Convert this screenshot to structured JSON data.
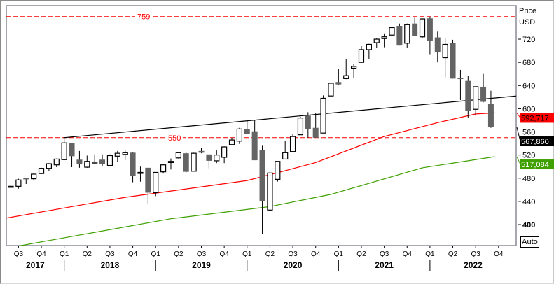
{
  "axis": {
    "title": "Price",
    "unit": "USD",
    "auto_label": "Auto"
  },
  "chart_data": {
    "type": "candlestick",
    "period": "monthly",
    "ylim": [
      385,
      775
    ],
    "yticks": [
      720,
      680,
      640,
      600,
      560,
      520,
      480,
      440,
      400
    ],
    "quarter_labels": [
      "Q3",
      "Q4",
      "Q1",
      "Q2",
      "Q3",
      "Q4",
      "Q1",
      "Q2",
      "Q3",
      "Q4",
      "Q1",
      "Q2",
      "Q3",
      "Q4",
      "Q1",
      "Q2",
      "Q3",
      "Q4",
      "Q1",
      "Q2",
      "Q3",
      "Q4"
    ],
    "year_labels": [
      "2017",
      "2018",
      "2019",
      "2020",
      "2021",
      "2022"
    ],
    "candles_ohlc": [
      [
        466,
        467,
        465,
        466
      ],
      [
        466,
        479,
        462,
        477
      ],
      [
        480,
        480,
        470,
        478
      ],
      [
        479,
        488,
        476,
        487
      ],
      [
        488,
        498,
        487,
        497
      ],
      [
        497,
        506,
        493,
        505
      ],
      [
        503,
        514,
        499,
        513
      ],
      [
        512,
        550,
        511,
        541
      ],
      [
        541,
        541,
        499,
        518
      ],
      [
        512,
        527,
        498,
        505
      ],
      [
        499,
        519,
        498,
        509
      ],
      [
        508,
        521,
        504,
        508
      ],
      [
        512,
        521,
        501,
        504
      ],
      [
        502,
        521,
        502,
        519
      ],
      [
        518,
        527,
        508,
        523
      ],
      [
        521,
        528,
        511,
        524
      ],
      [
        524,
        525,
        473,
        484
      ],
      [
        489,
        500,
        474,
        490
      ],
      [
        498,
        498,
        435,
        455
      ],
      [
        455,
        490,
        449,
        490
      ],
      [
        491,
        504,
        488,
        503
      ],
      [
        507,
        514,
        495,
        509
      ],
      [
        515,
        524,
        514,
        524
      ],
      [
        523,
        524,
        490,
        491
      ],
      [
        492,
        524,
        492,
        523
      ],
      [
        527,
        532,
        523,
        524
      ],
      [
        521,
        521,
        497,
        510
      ],
      [
        510,
        528,
        506,
        520
      ],
      [
        516,
        535,
        506,
        534
      ],
      [
        538,
        550,
        538,
        546
      ],
      [
        544,
        567,
        539,
        565
      ],
      [
        565,
        580,
        557,
        557
      ],
      [
        561,
        581,
        511,
        511
      ],
      [
        528,
        536,
        384,
        441
      ],
      [
        425,
        493,
        425,
        489
      ],
      [
        478,
        509,
        474,
        509
      ],
      [
        513,
        544,
        513,
        524
      ],
      [
        526,
        557,
        526,
        552
      ],
      [
        555,
        586,
        555,
        584
      ],
      [
        588,
        594,
        550,
        565
      ],
      [
        567,
        592,
        550,
        550
      ],
      [
        558,
        623,
        558,
        618
      ],
      [
        622,
        645,
        621,
        644
      ],
      [
        646,
        669,
        641,
        642
      ],
      [
        652,
        685,
        651,
        657
      ],
      [
        670,
        677,
        653,
        673
      ],
      [
        680,
        708,
        680,
        702
      ],
      [
        702,
        712,
        685,
        711
      ],
      [
        714,
        722,
        705,
        720
      ],
      [
        721,
        730,
        706,
        724
      ],
      [
        727,
        741,
        719,
        740
      ],
      [
        743,
        747,
        709,
        709
      ],
      [
        713,
        747,
        705,
        745
      ],
      [
        747,
        757,
        725,
        725
      ],
      [
        724,
        756,
        722,
        755
      ],
      [
        756,
        759,
        694,
        717
      ],
      [
        723,
        733,
        680,
        697
      ],
      [
        688,
        722,
        654,
        711
      ],
      [
        713,
        719,
        652,
        652
      ],
      [
        653,
        667,
        615,
        652
      ],
      [
        648,
        656,
        584,
        596
      ],
      [
        599,
        638,
        588,
        638
      ],
      [
        638,
        660,
        611,
        612
      ],
      [
        608,
        631,
        567,
        568
      ]
    ],
    "first_candle_month": "2017-06",
    "horizontal_levels": [
      {
        "value": 759,
        "label": "759",
        "color": "#ff0000",
        "style": "dashed"
      },
      {
        "value": 550,
        "label": "550",
        "color": "#ff0000",
        "style": "dashed"
      }
    ],
    "trendline": {
      "color": "#000000",
      "points": [
        [
          6.9,
          550
        ],
        [
          66.4,
          622
        ]
      ]
    },
    "moving_averages": [
      {
        "name": "MA red",
        "color": "#ff0000",
        "last_label": "592,717",
        "points": [
          [
            -0.7,
            411
          ],
          [
            15,
            447
          ],
          [
            31,
            476
          ],
          [
            34,
            486
          ],
          [
            40,
            507
          ],
          [
            49,
            552
          ],
          [
            56,
            576
          ],
          [
            61,
            591
          ],
          [
            63.5,
            592.7
          ]
        ]
      },
      {
        "name": "MA green",
        "color": "#3fa000",
        "last_label": "517,084",
        "points": [
          [
            1,
            363
          ],
          [
            21,
            410
          ],
          [
            34,
            431
          ],
          [
            42,
            452
          ],
          [
            54,
            498
          ],
          [
            63.5,
            517.1
          ]
        ]
      }
    ],
    "last_price": {
      "label": "567,860",
      "value": 567.86,
      "color": "#000000"
    },
    "colors": {
      "up": "#ffffff",
      "down": "#646464",
      "outline": "#000000"
    }
  }
}
